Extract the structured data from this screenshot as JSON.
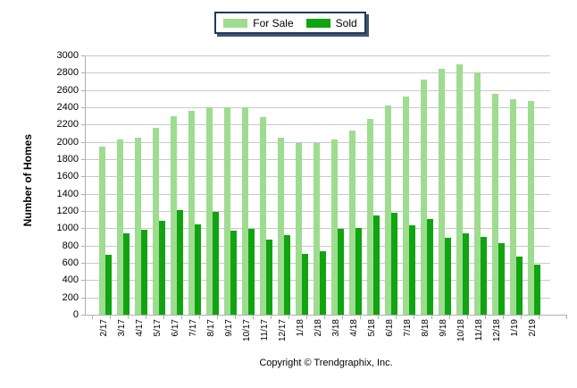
{
  "legend": {
    "items": [
      {
        "label": "For Sale",
        "color": "#9edc8f"
      },
      {
        "label": "Sold",
        "color": "#10a410"
      }
    ]
  },
  "y_axis": {
    "title": "Number of Homes"
  },
  "footer": {
    "copyright": "Copyright © Trendgraphix, Inc."
  },
  "chart_data": {
    "type": "bar",
    "title": "",
    "xlabel": "",
    "ylabel": "Number of Homes",
    "ylim": [
      0,
      3000
    ],
    "ytick_step": 200,
    "grid": true,
    "legend_position": "top-center",
    "categories": [
      "2/17",
      "3/17",
      "4/17",
      "5/17",
      "6/17",
      "7/17",
      "8/17",
      "9/17",
      "10/17",
      "11/17",
      "12/17",
      "1/18",
      "2/18",
      "3/18",
      "4/18",
      "5/18",
      "6/18",
      "7/18",
      "8/18",
      "9/18",
      "10/18",
      "11/18",
      "12/18",
      "1/19",
      "2/19"
    ],
    "series": [
      {
        "name": "For Sale",
        "color": "#9edc8f",
        "values": [
          1950,
          2030,
          2050,
          2160,
          2300,
          2360,
          2400,
          2400,
          2400,
          2290,
          2050,
          1990,
          1990,
          2030,
          2130,
          2270,
          2420,
          2520,
          2720,
          2850,
          2900,
          2800,
          2560,
          2490,
          2470
        ]
      },
      {
        "name": "Sold",
        "color": "#10a410",
        "values": [
          690,
          940,
          980,
          1090,
          1210,
          1040,
          1190,
          970,
          990,
          870,
          920,
          700,
          730,
          990,
          1000,
          1150,
          1180,
          1030,
          1110,
          890,
          940,
          900,
          830,
          670,
          580
        ]
      }
    ]
  }
}
